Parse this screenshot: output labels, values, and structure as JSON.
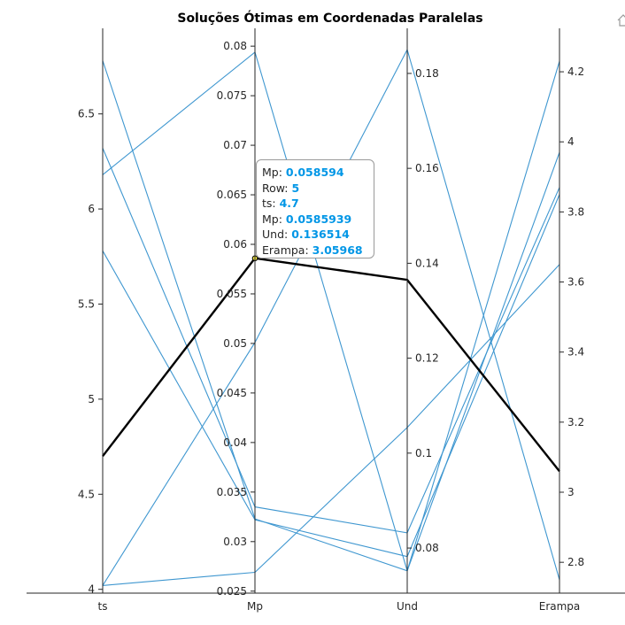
{
  "chart_data": {
    "type": "parallel-coordinates",
    "title": "Soluções Ótimas em Coordenadas Paralelas",
    "axes": [
      {
        "key": "ts",
        "label": "ts",
        "range": [
          3.98,
          6.95
        ],
        "ticks": [
          "4",
          "4.5",
          "5",
          "5.5",
          "6",
          "6.5"
        ],
        "tick_values": [
          4,
          4.5,
          5,
          5.5,
          6,
          6.5
        ]
      },
      {
        "key": "Mp",
        "label": "Mp",
        "range": [
          0.0248,
          0.0818
        ],
        "ticks": [
          "0.025",
          "0.03",
          "0.035",
          "0.04",
          "0.045",
          "0.05",
          "0.055",
          "0.06",
          "0.065",
          "0.07",
          "0.075",
          "0.08"
        ],
        "tick_values": [
          0.025,
          0.03,
          0.035,
          0.04,
          0.045,
          0.05,
          0.055,
          0.06,
          0.065,
          0.07,
          0.075,
          0.08
        ]
      },
      {
        "key": "Und",
        "label": "Und",
        "range": [
          0.0705,
          0.1895
        ],
        "ticks": [
          "0.08",
          "0.1",
          "0.12",
          "0.14",
          "0.16",
          "0.18"
        ],
        "tick_values": [
          0.08,
          0.1,
          0.12,
          0.14,
          0.16,
          0.18
        ]
      },
      {
        "key": "Erampa",
        "label": "Erampa",
        "range": [
          2.712,
          4.324
        ],
        "ticks": [
          "2.8",
          "3",
          "3.2",
          "3.4",
          "3.6",
          "3.8",
          "4",
          "4.2"
        ],
        "tick_values": [
          2.8,
          3,
          3.2,
          3.4,
          3.6,
          3.8,
          4,
          4.2
        ]
      }
    ],
    "rows": [
      {
        "ts": 6.78,
        "Mp": 0.0323,
        "Und": 0.0752,
        "Erampa": 3.97
      },
      {
        "ts": 6.32,
        "Mp": 0.0335,
        "Und": 0.0832,
        "Erampa": 3.87
      },
      {
        "ts": 6.18,
        "Mp": 0.0794,
        "Und": 0.0752,
        "Erampa": 4.23
      },
      {
        "ts": 5.78,
        "Mp": 0.0322,
        "Und": 0.0782,
        "Erampa": 3.85
      },
      {
        "ts": 4.7,
        "Mp": 0.0585939,
        "Und": 0.136514,
        "Erampa": 3.05968
      },
      {
        "ts": 4.02,
        "Mp": 0.0501,
        "Und": 0.185,
        "Erampa": 2.75
      },
      {
        "ts": 4.02,
        "Mp": 0.0269,
        "Und": 0.1054,
        "Erampa": 3.65
      }
    ],
    "highlight_row": 4,
    "grid": false,
    "datatip": {
      "lines": [
        {
          "label": "Mp: ",
          "value": "0.058594"
        },
        {
          "label": "Row: ",
          "value": "5"
        },
        {
          "label": "ts: ",
          "value": "4.7"
        },
        {
          "label": "Mp: ",
          "value": "0.0585939"
        },
        {
          "label": "Und: ",
          "value": "0.136514"
        },
        {
          "label": "Erampa: ",
          "value": "3.05968"
        }
      ]
    },
    "colors": {
      "lines": "#3f97d0",
      "highlight": "#000000",
      "axis": "#262626",
      "marker": "#f0e442"
    }
  },
  "toolbar": {
    "icon": "home-icon"
  }
}
